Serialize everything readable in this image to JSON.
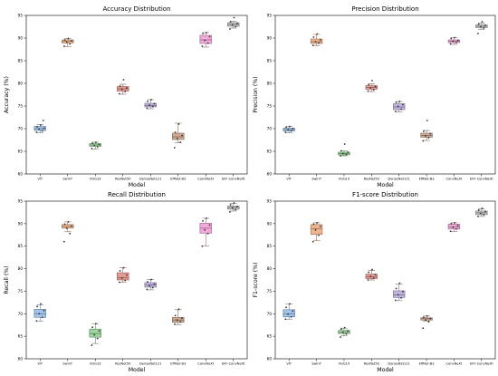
{
  "chart_data": [
    {
      "type": "box",
      "title": "Accuracy Distribution",
      "xlabel": "Model",
      "ylabel": "Accuracy (%)",
      "ylim": [
        60,
        95
      ],
      "yticks": [
        60,
        65,
        70,
        75,
        80,
        85,
        90,
        95
      ],
      "grid": false,
      "categories": [
        "ViT",
        "SwinT",
        "VGG19",
        "ResNet50",
        "DenseNet121",
        "EffNet-B3",
        "ConvNeXt",
        "EFF-ConvNeXt"
      ],
      "boxes": [
        {
          "min": 69.1,
          "q1": 69.6,
          "median": 70.0,
          "q3": 70.5,
          "max": 70.9,
          "points": [
            69.2,
            69.5,
            69.9,
            70.1,
            70.4,
            70.8,
            71.8
          ]
        },
        {
          "min": 88.1,
          "q1": 88.9,
          "median": 89.3,
          "q3": 89.6,
          "max": 89.9,
          "points": [
            88.2,
            88.7,
            89.1,
            89.4,
            89.6,
            89.9
          ]
        },
        {
          "min": 65.5,
          "q1": 66.1,
          "median": 66.4,
          "q3": 66.7,
          "max": 67.0,
          "points": [
            65.6,
            66.0,
            66.3,
            66.5,
            66.8,
            67.0
          ]
        },
        {
          "min": 77.6,
          "q1": 78.3,
          "median": 78.8,
          "q3": 79.3,
          "max": 79.8,
          "points": [
            77.7,
            78.2,
            78.7,
            79.0,
            79.4,
            80.8
          ]
        },
        {
          "min": 74.4,
          "q1": 74.8,
          "median": 75.1,
          "q3": 75.6,
          "max": 76.4,
          "points": [
            74.5,
            74.9,
            75.2,
            75.5,
            76.0,
            76.4
          ]
        },
        {
          "min": 66.9,
          "q1": 67.6,
          "median": 68.2,
          "q3": 69.0,
          "max": 71.2,
          "points": [
            65.8,
            67.0,
            67.8,
            68.5,
            69.2,
            71.0
          ]
        },
        {
          "min": 88.0,
          "q1": 88.8,
          "median": 89.6,
          "q3": 90.6,
          "max": 91.2,
          "points": [
            88.2,
            88.9,
            89.5,
            90.3,
            91.0,
            91.2
          ]
        },
        {
          "min": 92.2,
          "q1": 92.6,
          "median": 93.0,
          "q3": 93.4,
          "max": 93.7,
          "points": [
            92.0,
            92.5,
            92.9,
            93.2,
            93.6,
            94.5
          ]
        }
      ],
      "colors": [
        "#a2c4ec",
        "#f0b48f",
        "#9fd69f",
        "#e79a92",
        "#c3b3e0",
        "#cfa993",
        "#f2a8d8",
        "#c2c2c2"
      ]
    },
    {
      "type": "box",
      "title": "Precision Distribution",
      "xlabel": "Model",
      "ylabel": "Precision (%)",
      "ylim": [
        60,
        95
      ],
      "yticks": [
        60,
        65,
        70,
        75,
        80,
        85,
        90,
        95
      ],
      "grid": false,
      "categories": [
        "ViT",
        "SwinT",
        "VGG19",
        "ResNet50",
        "DenseNet121",
        "EffNet-B3",
        "ConvNeXt",
        "EFF-ConvNeXt"
      ],
      "boxes": [
        {
          "min": 69.1,
          "q1": 69.5,
          "median": 69.8,
          "q3": 70.1,
          "max": 70.5,
          "points": [
            69.2,
            69.5,
            69.8,
            70.0,
            70.3,
            70.5
          ]
        },
        {
          "min": 88.3,
          "q1": 88.8,
          "median": 89.2,
          "q3": 89.8,
          "max": 90.8,
          "points": [
            88.4,
            88.9,
            89.2,
            89.6,
            90.2,
            90.9
          ]
        },
        {
          "min": 64.0,
          "q1": 64.2,
          "median": 64.5,
          "q3": 64.8,
          "max": 65.1,
          "points": [
            64.0,
            64.3,
            64.5,
            64.8,
            65.1,
            66.6
          ]
        },
        {
          "min": 78.2,
          "q1": 78.7,
          "median": 79.1,
          "q3": 79.5,
          "max": 79.9,
          "points": [
            78.3,
            78.6,
            79.0,
            79.3,
            79.7,
            80.6
          ]
        },
        {
          "min": 73.7,
          "q1": 74.2,
          "median": 74.8,
          "q3": 75.5,
          "max": 76.0,
          "points": [
            73.8,
            74.3,
            74.9,
            75.3,
            75.8,
            76.0
          ]
        },
        {
          "min": 67.4,
          "q1": 68.1,
          "median": 68.5,
          "q3": 69.0,
          "max": 69.6,
          "points": [
            67.3,
            68.0,
            68.4,
            68.9,
            69.4,
            71.8
          ]
        },
        {
          "min": 88.6,
          "q1": 89.0,
          "median": 89.3,
          "q3": 89.6,
          "max": 90.1,
          "points": [
            88.7,
            89.0,
            89.3,
            89.5,
            89.9,
            90.1
          ]
        },
        {
          "min": 91.9,
          "q1": 92.3,
          "median": 92.6,
          "q3": 92.9,
          "max": 93.3,
          "points": [
            91.0,
            92.2,
            92.5,
            92.8,
            93.1,
            93.6
          ]
        }
      ],
      "colors": [
        "#a2c4ec",
        "#f0b48f",
        "#9fd69f",
        "#e79a92",
        "#c3b3e0",
        "#cfa993",
        "#f2a8d8",
        "#c2c2c2"
      ]
    },
    {
      "type": "box",
      "title": "Recall Distribution",
      "xlabel": "Model",
      "ylabel": "Recall (%)",
      "ylim": [
        60,
        95
      ],
      "yticks": [
        60,
        65,
        70,
        75,
        80,
        85,
        90,
        95
      ],
      "grid": false,
      "categories": [
        "ViT",
        "SwinT",
        "VGG19",
        "ResNet50",
        "DenseNet121",
        "EffNet-B3",
        "ConvNeXt",
        "EFF-ConvNeXt"
      ],
      "boxes": [
        {
          "min": 68.4,
          "q1": 69.2,
          "median": 70.0,
          "q3": 71.0,
          "max": 72.0,
          "points": [
            68.4,
            69.2,
            70.0,
            70.7,
            71.6,
            72.2
          ]
        },
        {
          "min": 88.2,
          "q1": 89.0,
          "median": 89.4,
          "q3": 89.8,
          "max": 90.4,
          "points": [
            86.0,
            87.8,
            89.0,
            89.5,
            89.9,
            90.4
          ]
        },
        {
          "min": 63.4,
          "q1": 64.8,
          "median": 65.6,
          "q3": 66.6,
          "max": 67.8,
          "points": [
            63.0,
            64.5,
            65.3,
            66.2,
            67.0,
            67.8
          ]
        },
        {
          "min": 77.0,
          "q1": 77.5,
          "median": 78.0,
          "q3": 79.1,
          "max": 80.2,
          "points": [
            77.0,
            77.4,
            77.9,
            78.6,
            79.5,
            80.2
          ]
        },
        {
          "min": 75.3,
          "q1": 75.9,
          "median": 76.4,
          "q3": 76.9,
          "max": 77.6,
          "points": [
            75.4,
            75.8,
            76.2,
            76.6,
            77.1,
            77.6
          ]
        },
        {
          "min": 67.6,
          "q1": 68.1,
          "median": 68.6,
          "q3": 69.2,
          "max": 70.9,
          "points": [
            67.7,
            68.2,
            68.6,
            69.0,
            69.6,
            71.0
          ]
        },
        {
          "min": 85.0,
          "q1": 87.9,
          "median": 89.0,
          "q3": 90.1,
          "max": 91.2,
          "points": [
            85.0,
            87.8,
            88.6,
            89.7,
            90.6,
            91.2
          ]
        },
        {
          "min": 92.8,
          "q1": 93.2,
          "median": 93.6,
          "q3": 93.9,
          "max": 94.5,
          "points": [
            92.6,
            93.1,
            93.5,
            93.8,
            94.2,
            94.6
          ]
        }
      ],
      "colors": [
        "#a2c4ec",
        "#f0b48f",
        "#9fd69f",
        "#e79a92",
        "#c3b3e0",
        "#cfa993",
        "#f2a8d8",
        "#c2c2c2"
      ]
    },
    {
      "type": "box",
      "title": "F1-score Distribution",
      "xlabel": "Model",
      "ylabel": "F1-score (%)",
      "ylim": [
        60,
        95
      ],
      "yticks": [
        60,
        65,
        70,
        75,
        80,
        85,
        90,
        95
      ],
      "grid": false,
      "categories": [
        "ViT",
        "SwinT",
        "VGG19",
        "ResNet50",
        "DenseNet121",
        "EffNet-B3",
        "ConvNeXt",
        "EFF-ConvNeXt"
      ],
      "boxes": [
        {
          "min": 68.8,
          "q1": 69.3,
          "median": 70.0,
          "q3": 70.9,
          "max": 72.2,
          "points": [
            68.8,
            69.3,
            69.9,
            70.6,
            71.4,
            72.2
          ]
        },
        {
          "min": 86.2,
          "q1": 87.6,
          "median": 88.9,
          "q3": 89.8,
          "max": 90.2,
          "points": [
            86.0,
            87.4,
            88.6,
            89.4,
            89.9,
            90.2
          ]
        },
        {
          "min": 65.1,
          "q1": 65.6,
          "median": 65.9,
          "q3": 66.3,
          "max": 66.8,
          "points": [
            64.8,
            65.5,
            65.9,
            66.2,
            66.6,
            66.9
          ]
        },
        {
          "min": 77.5,
          "q1": 77.8,
          "median": 78.2,
          "q3": 78.8,
          "max": 79.6,
          "points": [
            77.5,
            77.9,
            78.3,
            78.7,
            79.2,
            79.8
          ]
        },
        {
          "min": 72.9,
          "q1": 73.6,
          "median": 74.2,
          "q3": 75.1,
          "max": 76.6,
          "points": [
            73.0,
            73.5,
            74.2,
            74.9,
            75.6,
            76.8
          ]
        },
        {
          "min": 68.4,
          "q1": 68.6,
          "median": 68.9,
          "q3": 69.1,
          "max": 69.5,
          "points": [
            66.8,
            68.2,
            68.6,
            68.9,
            69.2,
            69.5
          ]
        },
        {
          "min": 88.3,
          "q1": 88.8,
          "median": 89.3,
          "q3": 89.9,
          "max": 90.2,
          "points": [
            88.3,
            88.8,
            89.2,
            89.6,
            90.0,
            90.2
          ]
        },
        {
          "min": 91.6,
          "q1": 92.0,
          "median": 92.4,
          "q3": 92.8,
          "max": 93.3,
          "points": [
            91.6,
            92.0,
            92.3,
            92.7,
            93.0,
            93.4
          ]
        }
      ],
      "colors": [
        "#a2c4ec",
        "#f0b48f",
        "#9fd69f",
        "#e79a92",
        "#c3b3e0",
        "#cfa993",
        "#f2a8d8",
        "#c2c2c2"
      ]
    }
  ]
}
